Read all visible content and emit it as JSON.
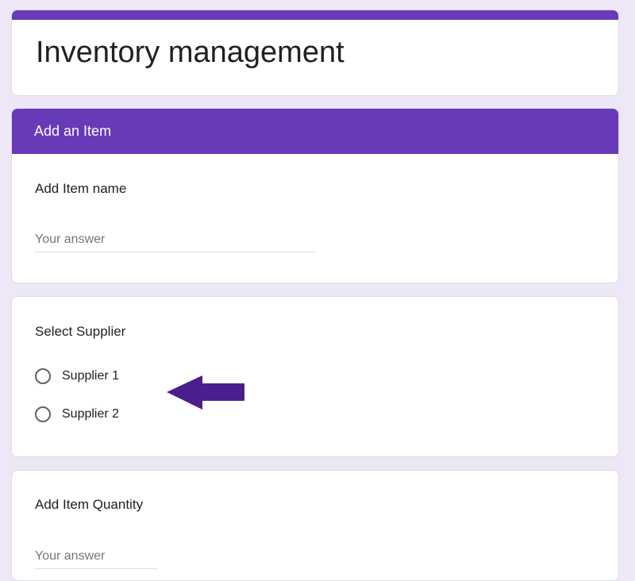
{
  "form": {
    "title": "Inventory management"
  },
  "section": {
    "title": "Add an Item"
  },
  "questions": [
    {
      "label": "Add Item name",
      "placeholder": "Your answer"
    },
    {
      "label": "Select Supplier",
      "options": [
        "Supplier 1",
        "Supplier 2"
      ]
    },
    {
      "label": "Add Item Quantity",
      "placeholder": "Your answer"
    }
  ],
  "colors": {
    "accent": "#673ab7",
    "background": "#ede7f7",
    "arrow": "#4a1e8c"
  },
  "annotation": {
    "icon": "arrow-left-icon"
  }
}
